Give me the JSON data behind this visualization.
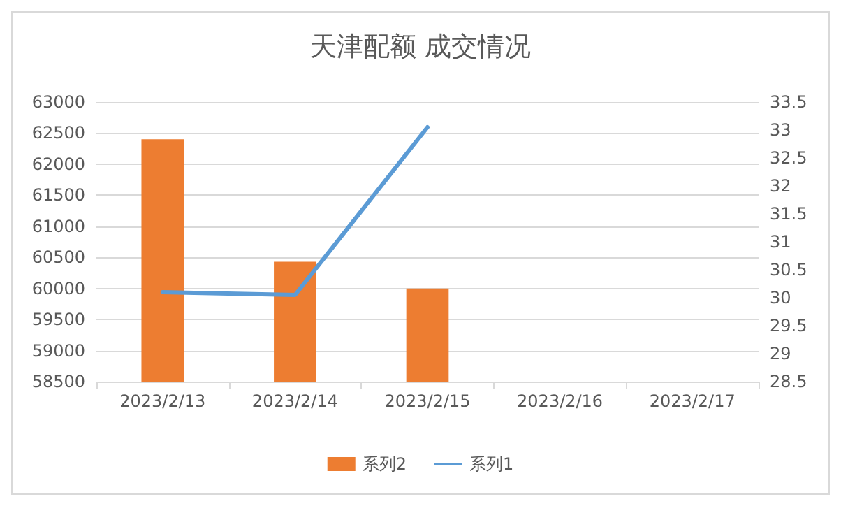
{
  "chart_data": {
    "type": "bar",
    "title": "天津配额 成交情况",
    "categories": [
      "2023/2/13",
      "2023/2/14",
      "2023/2/15",
      "2023/2/16",
      "2023/2/17"
    ],
    "series": [
      {
        "name": "系列2",
        "color": "#ed7d31",
        "values": [
          62400,
          60430,
          60000,
          null,
          null
        ]
      },
      {
        "name": "系列1",
        "type": "line",
        "axis": "y2",
        "color": "#5b9bd5",
        "values": [
          30.1,
          30.05,
          33.05,
          null,
          null
        ]
      }
    ],
    "ylim": [
      58500,
      63000
    ],
    "yticks": [
      58500,
      59000,
      59500,
      60000,
      60500,
      61000,
      61500,
      62000,
      62500,
      63000
    ],
    "y2lim": [
      28.5,
      33.5
    ],
    "y2ticks": [
      28.5,
      29,
      29.5,
      30,
      30.5,
      31,
      31.5,
      32,
      32.5,
      33,
      33.5
    ],
    "grid": "y",
    "legend": "bottom",
    "marker": "none",
    "line_style": "solid"
  }
}
